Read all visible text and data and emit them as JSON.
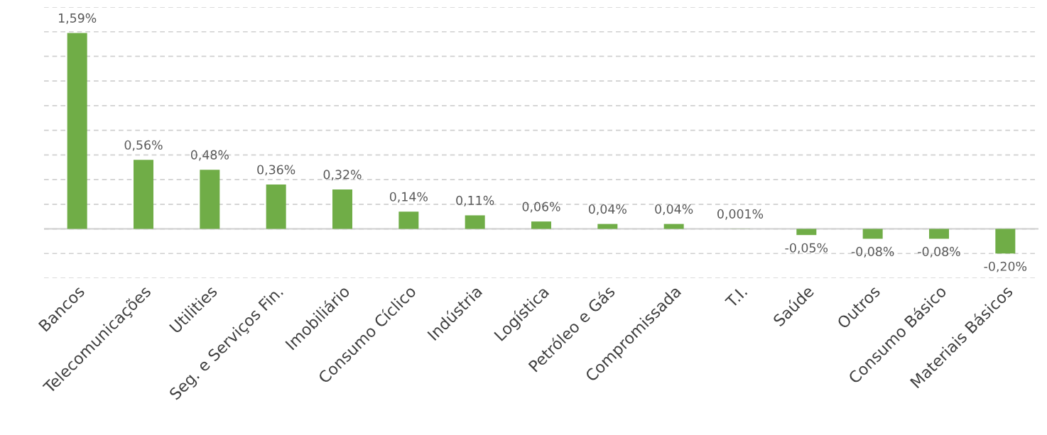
{
  "chart_data": {
    "type": "bar",
    "categories": [
      "Bancos",
      "Telecomunicações",
      "Utilities",
      "Seg. e Serviços Fin.",
      "Imobiliário",
      "Consumo Cíclico",
      "Indústria",
      "Logística",
      "Petróleo e Gás",
      "Compromissada",
      "T.I.",
      "Saúde",
      "Outros",
      "Consumo Básico",
      "Materiais Básicos"
    ],
    "values": [
      1.59,
      0.56,
      0.48,
      0.36,
      0.32,
      0.14,
      0.11,
      0.06,
      0.04,
      0.04,
      0.001,
      -0.05,
      -0.08,
      -0.08,
      -0.2
    ],
    "value_labels": [
      "1,59%",
      "0,56%",
      "0,48%",
      "0,36%",
      "0,32%",
      "0,14%",
      "0,11%",
      "0,06%",
      "0,04%",
      "0,04%",
      "0,001%",
      "-0,05%",
      "-0,08%",
      "-0,08%",
      "-0,20%"
    ],
    "color": "#70ad47",
    "ylim": [
      -0.4,
      1.8
    ],
    "yticks": [
      {
        "value": -0.4,
        "label": null
      },
      {
        "value": -0.2,
        "label": null
      },
      {
        "value": 0,
        "label": null
      },
      {
        "value": 0.2,
        "label": null
      },
      {
        "value": 0.4,
        "label": null
      },
      {
        "value": 0.6,
        "label": null
      },
      {
        "value": 0.8,
        "label": null
      },
      {
        "value": 1.0,
        "label": null
      },
      {
        "value": 1.2,
        "label": null
      },
      {
        "value": 1.4,
        "label": null
      },
      {
        "value": 1.6,
        "label": null
      },
      {
        "value": 1.8,
        "label": null
      }
    ],
    "grid": "y",
    "tick_labels": "x"
  }
}
